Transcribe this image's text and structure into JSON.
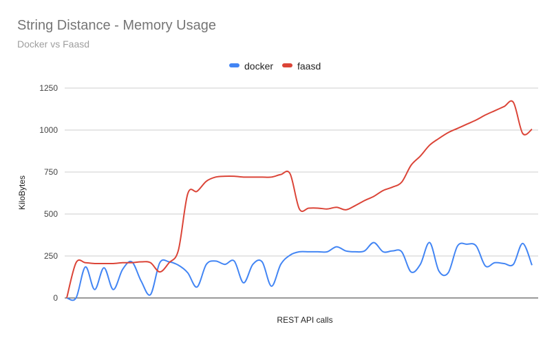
{
  "chart_data": {
    "type": "line",
    "title": "String Distance - Memory Usage",
    "subtitle": "Docker vs Faasd",
    "xlabel": "REST API calls",
    "ylabel": "KiloBytes",
    "ylim": [
      0,
      1250
    ],
    "yticks": [
      "0",
      "250",
      "500",
      "750",
      "1000",
      "1250"
    ],
    "grid": true,
    "legend_position": "top",
    "colors": {
      "docker": "#4285f4",
      "faasd": "#db4437"
    },
    "series": [
      {
        "name": "docker",
        "values": [
          0,
          0,
          185,
          50,
          180,
          50,
          170,
          215,
          100,
          20,
          210,
          215,
          195,
          150,
          65,
          200,
          220,
          200,
          220,
          90,
          200,
          215,
          70,
          200,
          255,
          275,
          275,
          275,
          275,
          305,
          280,
          275,
          280,
          330,
          275,
          280,
          275,
          155,
          200,
          330,
          160,
          150,
          310,
          320,
          310,
          190,
          210,
          205,
          200,
          325,
          195
        ]
      },
      {
        "name": "faasd",
        "values": [
          0,
          210,
          210,
          205,
          205,
          205,
          210,
          210,
          215,
          210,
          155,
          210,
          285,
          620,
          635,
          695,
          720,
          725,
          725,
          720,
          720,
          720,
          720,
          735,
          740,
          530,
          535,
          535,
          530,
          540,
          525,
          550,
          580,
          605,
          640,
          660,
          690,
          790,
          845,
          910,
          950,
          985,
          1010,
          1035,
          1060,
          1090,
          1115,
          1140,
          1165,
          980,
          1005
        ]
      }
    ]
  }
}
